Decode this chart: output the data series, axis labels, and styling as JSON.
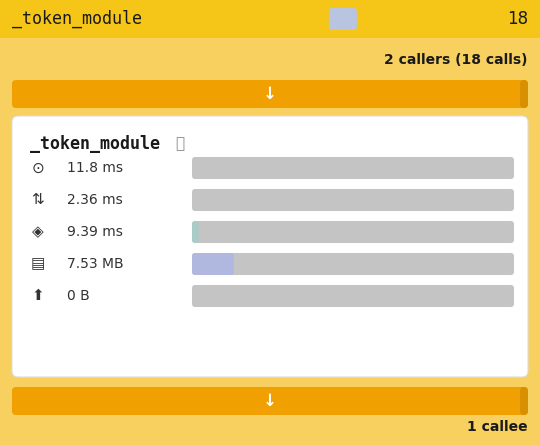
{
  "bg_color": "#f5c518",
  "bg_light": "#f7d060",
  "header_bg": "#f5c518",
  "header_text": "_token_module",
  "header_number": "18",
  "header_bar_color": "#b8c4e0",
  "callers_text": "2 callers (18 calls)",
  "arrow_btn_color": "#f0a000",
  "card_bg": "#ffffff",
  "card_title": "_token_module",
  "metrics": [
    {
      "value": "11.8 ms",
      "bar_fill": 0.0,
      "bar_color": "#c4c4c4",
      "bar_highlight": null
    },
    {
      "value": "2.36 ms",
      "bar_fill": 0.0,
      "bar_color": "#c4c4c4",
      "bar_highlight": null
    },
    {
      "value": "9.39 ms",
      "bar_fill": 0.02,
      "bar_color": "#c4c4c4",
      "bar_highlight": "#a8ccc8"
    },
    {
      "value": "7.53 MB",
      "bar_fill": 0.13,
      "bar_color": "#c4c4c4",
      "bar_highlight": "#b0b8e0"
    },
    {
      "value": "0 B",
      "bar_fill": 0.0,
      "bar_color": "#c4c4c4",
      "bar_highlight": null
    }
  ],
  "bottom_callee_text": "1 callee",
  "orange_btn_right_strip": "#d89000",
  "figw": 5.4,
  "figh": 4.45,
  "dpi": 100
}
